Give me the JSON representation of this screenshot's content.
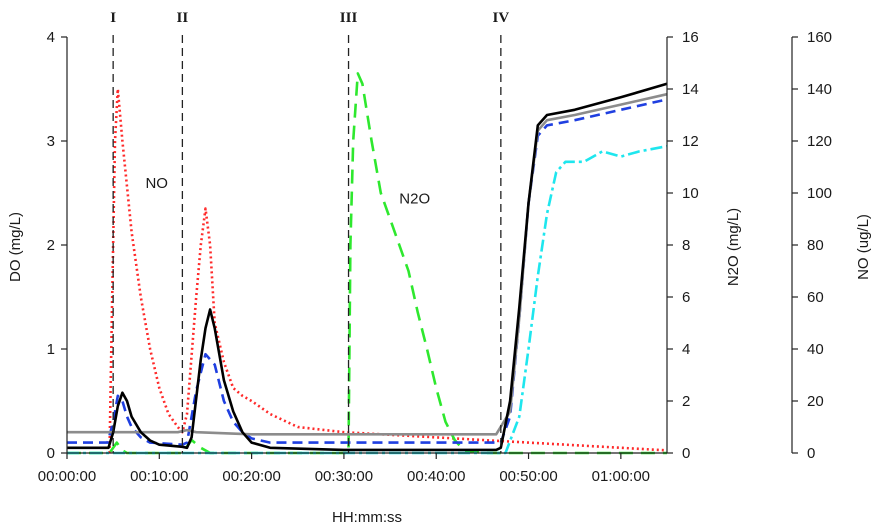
{
  "chart_data": {
    "type": "line",
    "xlabel": "HH:mm:ss",
    "ylabel_left": "DO (mg/L)",
    "ylabel_right1": "N2O (mg/L)",
    "ylabel_right2": "NO (ug/L)",
    "xlim": [
      0,
      65
    ],
    "x_ticks": [
      0,
      10,
      20,
      30,
      40,
      50,
      60
    ],
    "x_tick_labels": [
      "00:00:00",
      "00:10:00",
      "00:20:00",
      "00:30:00",
      "00:40:00",
      "00:50:00",
      "01:00:00"
    ],
    "y_left": {
      "ylim": [
        0,
        4
      ],
      "ticks": [
        "0",
        "1",
        "2",
        "3",
        "4"
      ]
    },
    "y_right1": {
      "ylim": [
        0,
        16
      ],
      "ticks": [
        "0",
        "2",
        "4",
        "6",
        "8",
        "10",
        "12",
        "14",
        "16"
      ]
    },
    "y_right2": {
      "ylim": [
        0,
        160
      ],
      "ticks": [
        "0",
        "20",
        "40",
        "60",
        "80",
        "100",
        "120",
        "140",
        "160"
      ]
    },
    "phase_lines": [
      {
        "label": "I",
        "x": 5
      },
      {
        "label": "II",
        "x": 12.5
      },
      {
        "label": "III",
        "x": 30.5
      },
      {
        "label": "IV",
        "x": 47
      }
    ],
    "annotations": [
      {
        "text": "NO",
        "x": 8.5,
        "y": 2.55,
        "axis": "left"
      },
      {
        "text": "N2O",
        "x": 36,
        "y": 2.4,
        "axis": "left"
      }
    ],
    "series": [
      {
        "axis": "right2",
        "color": "#ff2a2a",
        "dash": "2,3",
        "points": [
          [
            4.6,
            0
          ],
          [
            4.9,
            60
          ],
          [
            5.2,
            120
          ],
          [
            5.5,
            140
          ],
          [
            6,
            120
          ],
          [
            7,
            85
          ],
          [
            8,
            60
          ],
          [
            9,
            40
          ],
          [
            10,
            25
          ],
          [
            11,
            15
          ],
          [
            12,
            10
          ],
          [
            12.5,
            8
          ],
          [
            13,
            15
          ],
          [
            14,
            60
          ],
          [
            14.5,
            80
          ],
          [
            15,
            94
          ],
          [
            15.5,
            80
          ],
          [
            16,
            50
          ],
          [
            17,
            35
          ],
          [
            18,
            25
          ],
          [
            19,
            22
          ],
          [
            20,
            20
          ],
          [
            22,
            15
          ],
          [
            25,
            10
          ],
          [
            30,
            8
          ],
          [
            35,
            7
          ],
          [
            40,
            6
          ],
          [
            45,
            5
          ],
          [
            50,
            4
          ],
          [
            55,
            3
          ],
          [
            60,
            2
          ],
          [
            65,
            1
          ]
        ]
      },
      {
        "axis": "right1",
        "color": "#2ee82e",
        "dash": "14,8",
        "points": [
          [
            0,
            0
          ],
          [
            4.6,
            0
          ],
          [
            5.4,
            0.4
          ],
          [
            6,
            0.1
          ],
          [
            6.5,
            0
          ],
          [
            12.5,
            0
          ],
          [
            13.5,
            0.5
          ],
          [
            14.5,
            0.2
          ],
          [
            15.5,
            0
          ],
          [
            30.5,
            0
          ],
          [
            30.7,
            8
          ],
          [
            31,
            12
          ],
          [
            31.5,
            14.6
          ],
          [
            32,
            14.2
          ],
          [
            33,
            12
          ],
          [
            34,
            10
          ],
          [
            35,
            9
          ],
          [
            36,
            8
          ],
          [
            37,
            7
          ],
          [
            38,
            5.4
          ],
          [
            39,
            4
          ],
          [
            40,
            2.5
          ],
          [
            41,
            1.2
          ],
          [
            42,
            0.5
          ],
          [
            43,
            0.1
          ],
          [
            45,
            0
          ],
          [
            65,
            0
          ]
        ]
      },
      {
        "axis": "left",
        "color": "#1f3fe0",
        "dash": "10,6",
        "points": [
          [
            0,
            0.1
          ],
          [
            4.4,
            0.1
          ],
          [
            5,
            0.3
          ],
          [
            5.5,
            0.55
          ],
          [
            6,
            0.5
          ],
          [
            6.5,
            0.35
          ],
          [
            7,
            0.25
          ],
          [
            8,
            0.15
          ],
          [
            9,
            0.1
          ],
          [
            12.5,
            0.08
          ],
          [
            13,
            0.1
          ],
          [
            14,
            0.6
          ],
          [
            15,
            0.95
          ],
          [
            16,
            0.85
          ],
          [
            17,
            0.5
          ],
          [
            18,
            0.3
          ],
          [
            19,
            0.2
          ],
          [
            20,
            0.14
          ],
          [
            22,
            0.1
          ],
          [
            30,
            0.1
          ],
          [
            35,
            0.1
          ],
          [
            46,
            0.1
          ],
          [
            47,
            0.1
          ],
          [
            48,
            0.35
          ],
          [
            49,
            1.3
          ],
          [
            50,
            2.4
          ],
          [
            51,
            3.05
          ],
          [
            52,
            3.15
          ],
          [
            55,
            3.2
          ],
          [
            60,
            3.3
          ],
          [
            65,
            3.4
          ]
        ]
      },
      {
        "axis": "left",
        "color": "#1ee6ee",
        "dash": "12,4,3,4",
        "points": [
          [
            0,
            0
          ],
          [
            47.5,
            0
          ],
          [
            49,
            0.35
          ],
          [
            50,
            1.0
          ],
          [
            51,
            1.7
          ],
          [
            52,
            2.3
          ],
          [
            53,
            2.7
          ],
          [
            54,
            2.8
          ],
          [
            56,
            2.8
          ],
          [
            58,
            2.9
          ],
          [
            60,
            2.85
          ],
          [
            62,
            2.9
          ],
          [
            65,
            2.95
          ]
        ]
      },
      {
        "axis": "left",
        "color": "#8c8c8c",
        "dash": "",
        "points": [
          [
            0,
            0.2
          ],
          [
            12,
            0.2
          ],
          [
            13,
            0.22
          ],
          [
            14,
            0.2
          ],
          [
            20,
            0.18
          ],
          [
            30,
            0.18
          ],
          [
            46.5,
            0.18
          ],
          [
            48,
            0.4
          ],
          [
            49,
            1.3
          ],
          [
            50,
            2.4
          ],
          [
            51,
            3.1
          ],
          [
            52,
            3.2
          ],
          [
            55,
            3.25
          ],
          [
            60,
            3.35
          ],
          [
            65,
            3.45
          ]
        ]
      },
      {
        "axis": "left",
        "color": "#000000",
        "dash": "",
        "points": [
          [
            0,
            0.05
          ],
          [
            4.5,
            0.05
          ],
          [
            5,
            0.2
          ],
          [
            5.5,
            0.45
          ],
          [
            6,
            0.58
          ],
          [
            6.5,
            0.5
          ],
          [
            7,
            0.35
          ],
          [
            8,
            0.2
          ],
          [
            9,
            0.12
          ],
          [
            10,
            0.08
          ],
          [
            12.5,
            0.06
          ],
          [
            13,
            0.05
          ],
          [
            13.5,
            0.15
          ],
          [
            14.5,
            0.9
          ],
          [
            15,
            1.2
          ],
          [
            15.5,
            1.38
          ],
          [
            16,
            1.2
          ],
          [
            17,
            0.7
          ],
          [
            18,
            0.4
          ],
          [
            19,
            0.2
          ],
          [
            20,
            0.1
          ],
          [
            22,
            0.05
          ],
          [
            30,
            0.03
          ],
          [
            46.5,
            0.03
          ],
          [
            47,
            0.05
          ],
          [
            48,
            0.5
          ],
          [
            49,
            1.4
          ],
          [
            50,
            2.4
          ],
          [
            51,
            3.15
          ],
          [
            52,
            3.25
          ],
          [
            55,
            3.3
          ],
          [
            60,
            3.42
          ],
          [
            65,
            3.55
          ]
        ]
      }
    ]
  }
}
